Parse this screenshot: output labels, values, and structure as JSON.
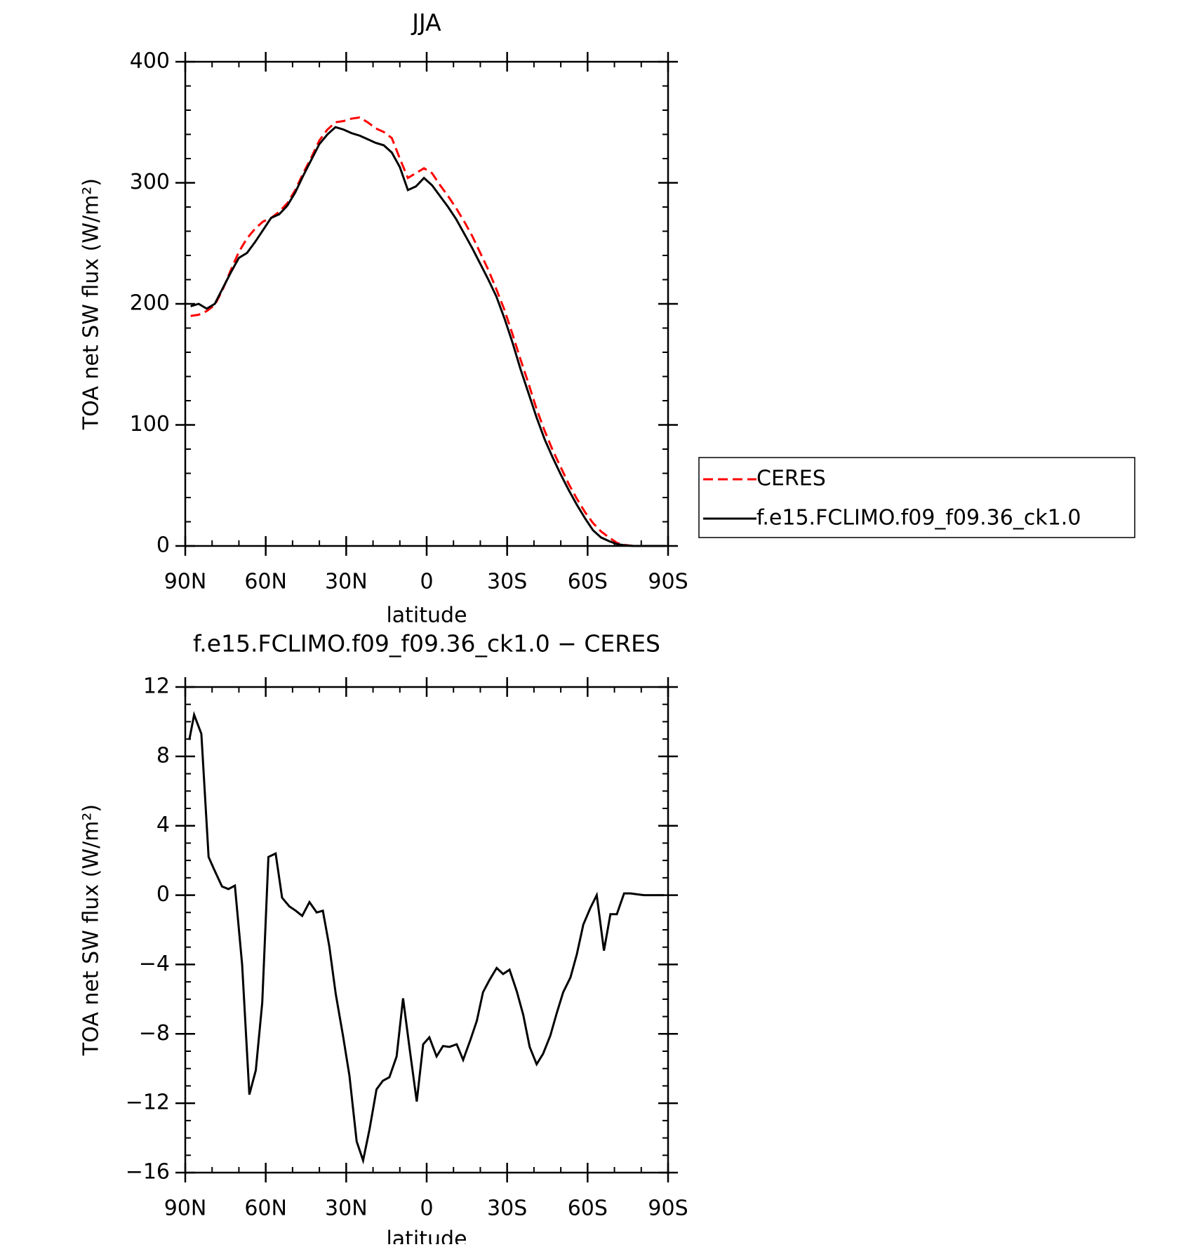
{
  "chart_data": [
    {
      "type": "line",
      "title": "JJA",
      "x_label": "latitude",
      "y_label": "TOA net SW flux (W/m²)",
      "x": [
        88,
        85,
        82,
        79,
        76,
        73,
        70,
        67,
        64,
        61,
        58,
        55,
        52,
        49,
        46,
        43,
        40,
        37,
        34,
        31,
        28,
        25,
        22,
        19,
        16,
        13,
        10,
        7,
        4,
        1,
        -2,
        -5,
        -8,
        -11,
        -14,
        -17,
        -20,
        -23,
        -26,
        -29,
        -32,
        -35,
        -38,
        -41,
        -44,
        -47,
        -50,
        -53,
        -56,
        -59,
        -62,
        -65,
        -68,
        -71,
        -74,
        -77,
        -80,
        -83,
        -86,
        -89
      ],
      "xlim": [
        90,
        -90
      ],
      "xticks": [
        {
          "value": 90,
          "label": "90N"
        },
        {
          "value": 60,
          "label": "60N"
        },
        {
          "value": 30,
          "label": "30N"
        },
        0,
        {
          "value": -30,
          "label": "30S"
        },
        {
          "value": -60,
          "label": "60S"
        },
        {
          "value": -90,
          "label": "90S"
        }
      ],
      "ylim": [
        0,
        400
      ],
      "yticks": [
        0,
        100,
        200,
        300,
        400
      ],
      "legend": "outside right",
      "series": [
        {
          "name": "CERES",
          "color": "#ff0000",
          "dash": "dashed",
          "values": [
            190,
            191,
            194,
            199,
            212,
            228,
            243,
            254,
            262,
            268,
            271,
            276,
            283,
            294,
            308,
            321,
            335,
            344,
            350,
            351,
            353,
            354,
            350,
            345,
            342,
            337,
            320,
            304,
            308,
            312,
            308,
            298,
            289,
            279,
            268,
            256,
            242,
            228,
            212,
            195,
            175,
            154,
            134,
            113,
            95,
            79,
            65,
            51,
            39,
            28,
            19,
            12,
            7,
            2.5,
            0.8,
            0,
            0,
            0,
            0,
            0
          ]
        },
        {
          "name": "f.e15.FCLIMO.f09_f09.36_ck1.0",
          "color": "#000000",
          "dash": "solid",
          "values": [
            198,
            200,
            196,
            200,
            213,
            226,
            238,
            242,
            251,
            261,
            271,
            274,
            281,
            292,
            306,
            319,
            332,
            340,
            346,
            344,
            341,
            339,
            336,
            333,
            331,
            325,
            313,
            294,
            297,
            304,
            298,
            289,
            280,
            270,
            258,
            246,
            233,
            220,
            206,
            188,
            168,
            146,
            126,
            106,
            88,
            73,
            59,
            46,
            34,
            23,
            13,
            7,
            4,
            1.5,
            0.5,
            0,
            0,
            0,
            0,
            0
          ]
        }
      ]
    },
    {
      "type": "line",
      "title": "f.e15.FCLIMO.f09_f09.36_ck1.0 − CERES",
      "x_label": "latitude",
      "y_label": "TOA net SW flux (W/m²)",
      "x": [
        88.5,
        86.7,
        84,
        81.3,
        79.3,
        76.3,
        73.9,
        71.5,
        68.8,
        66.1,
        63.7,
        61.3,
        59,
        56.3,
        53.9,
        51.2,
        48.8,
        46.4,
        43.7,
        41,
        38.7,
        36.3,
        33.9,
        31.2,
        28.8,
        26.1,
        23.7,
        21.3,
        18.7,
        16.3,
        13.9,
        11.2,
        8.8,
        6.4,
        3.7,
        1.3,
        -1,
        -3.7,
        -6.1,
        -8.5,
        -11.2,
        -13.6,
        -16.3,
        -18.7,
        -21,
        -23.4,
        -26.1,
        -28.5,
        -30.9,
        -33.6,
        -36,
        -38.4,
        -41,
        -43.4,
        -46.1,
        -48.5,
        -50.9,
        -53.6,
        -56,
        -58.4,
        -61,
        -63.4,
        -66.1,
        -68.5,
        -70.9,
        -73.6,
        -76,
        -78.4,
        -81,
        -83.4,
        -85.8,
        -88.5
      ],
      "xlim": [
        90,
        -90
      ],
      "xticks": [
        {
          "value": 90,
          "label": "90N"
        },
        {
          "value": 60,
          "label": "60N"
        },
        {
          "value": 30,
          "label": "30N"
        },
        0,
        {
          "value": -30,
          "label": "30S"
        },
        {
          "value": -60,
          "label": "60S"
        },
        {
          "value": -90,
          "label": "90S"
        }
      ],
      "ylim": [
        -16,
        12
      ],
      "yticks": [
        {
          "value": -16,
          "label": "−16"
        },
        {
          "value": -12,
          "label": "−12"
        },
        {
          "value": -8,
          "label": "−8"
        },
        {
          "value": -4,
          "label": "−4"
        },
        0,
        4,
        8,
        12
      ],
      "series": [
        {
          "color": "#000000",
          "dash": "solid",
          "values": [
            8.95,
            10.4,
            9.3,
            2.2,
            1.5,
            0.5,
            0.35,
            0.55,
            -4,
            -11.5,
            -10.1,
            -6.2,
            2.2,
            2.4,
            -0.15,
            -0.65,
            -0.9,
            -1.2,
            -0.4,
            -1.0,
            -0.9,
            -2.95,
            -5.7,
            -8.1,
            -10.4,
            -14.2,
            -15.3,
            -13.5,
            -11.2,
            -10.7,
            -10.5,
            -9.3,
            -5.95,
            -8.8,
            -11.9,
            -8.6,
            -8.2,
            -9.3,
            -8.7,
            -8.75,
            -8.6,
            -9.5,
            -8.35,
            -7.25,
            -5.6,
            -4.9,
            -4.2,
            -4.55,
            -4.3,
            -5.55,
            -6.9,
            -8.75,
            -9.75,
            -9.15,
            -8.1,
            -6.8,
            -5.6,
            -4.75,
            -3.4,
            -1.7,
            -0.75,
            0,
            -3.2,
            -1.1,
            -1.1,
            0.1,
            0.1,
            0.05,
            0,
            0,
            0,
            0
          ]
        }
      ]
    }
  ]
}
